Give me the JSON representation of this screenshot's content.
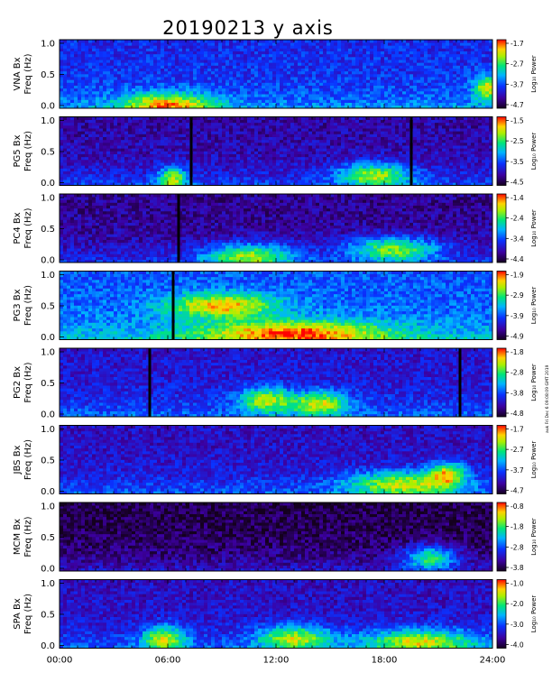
{
  "chart_data": {
    "type": "heatmap",
    "title": "20190213 y axis",
    "x_tick_labels": [
      "00:00",
      "06:00",
      "12:00",
      "18:00",
      "24:00"
    ],
    "x_range_hours": [
      0,
      24
    ],
    "y_tick_labels": [
      "0.0",
      "0.5",
      "1.0"
    ],
    "y_range_hz": [
      0,
      1.0
    ],
    "colorbar_label": "Log₁₀ Power",
    "credit": "auk Fri Dec 6 09:08:09 GMT 2019",
    "panels": [
      {
        "station": "VNA Bx",
        "freq_label": "Freq (Hz)",
        "cb_ticks": [
          "-1.7",
          "-2.7",
          "-3.7",
          "-4.7"
        ],
        "dark_gaps_hours": [],
        "hot_spots": [
          {
            "t": 6.0,
            "f": 0.05,
            "w": 2.5
          },
          {
            "t": 23.8,
            "f": 0.3,
            "w": 0.8
          }
        ]
      },
      {
        "station": "PG5 Bx",
        "freq_label": "Freq (Hz)",
        "cb_ticks": [
          "-1.5",
          "-2.5",
          "-3.5",
          "-4.5"
        ],
        "dark_gaps_hours": [
          7.3,
          19.5
        ],
        "hot_spots": [
          {
            "t": 6.3,
            "f": 0.1,
            "w": 0.8
          },
          {
            "t": 17.5,
            "f": 0.15,
            "w": 2.0
          }
        ]
      },
      {
        "station": "PC4 Bx",
        "freq_label": "Freq (Hz)",
        "cb_ticks": [
          "-1.4",
          "-2.4",
          "-3.4",
          "-4.4"
        ],
        "dark_gaps_hours": [
          6.6
        ],
        "hot_spots": [
          {
            "t": 10.5,
            "f": 0.1,
            "w": 2.5
          },
          {
            "t": 18.5,
            "f": 0.2,
            "w": 2.5
          }
        ]
      },
      {
        "station": "PG3 Bx",
        "freq_label": "Freq (Hz)",
        "cb_ticks": [
          "-1.9",
          "-2.9",
          "-3.9",
          "-4.9"
        ],
        "dark_gaps_hours": [
          6.3
        ],
        "hot_spots": [
          {
            "t": 13.0,
            "f": 0.1,
            "w": 5.0
          },
          {
            "t": 9.0,
            "f": 0.5,
            "w": 3.0
          }
        ]
      },
      {
        "station": "PG2 Bx",
        "freq_label": "Freq (Hz)",
        "cb_ticks": [
          "-1.8",
          "-2.8",
          "-3.8",
          "-4.8"
        ],
        "dark_gaps_hours": [
          5.0,
          22.2
        ],
        "hot_spots": [
          {
            "t": 11.5,
            "f": 0.25,
            "w": 1.5
          },
          {
            "t": 14.5,
            "f": 0.2,
            "w": 1.5
          }
        ]
      },
      {
        "station": "JBS Bx",
        "freq_label": "Freq (Hz)",
        "cb_ticks": [
          "-1.7",
          "-2.7",
          "-3.7",
          "-4.7"
        ],
        "dark_gaps_hours": [],
        "hot_spots": [
          {
            "t": 21.5,
            "f": 0.3,
            "w": 1.0
          },
          {
            "t": 19.0,
            "f": 0.15,
            "w": 3.0
          }
        ]
      },
      {
        "station": "MCM Bx",
        "freq_label": "Freq (Hz)",
        "cb_ticks": [
          "-0.8",
          "-1.8",
          "-2.8",
          "-3.8"
        ],
        "dark_gaps_hours": [],
        "hot_spots": [
          {
            "t": 20.5,
            "f": 0.2,
            "w": 1.5
          }
        ]
      },
      {
        "station": "SPA Bx",
        "freq_label": "Freq (Hz)",
        "cb_ticks": [
          "-1.0",
          "-2.0",
          "-3.0",
          "-4.0"
        ],
        "dark_gaps_hours": [],
        "hot_spots": [
          {
            "t": 5.8,
            "f": 0.15,
            "w": 1.2
          },
          {
            "t": 13.0,
            "f": 0.15,
            "w": 2.0
          },
          {
            "t": 20.0,
            "f": 0.1,
            "w": 3.0
          }
        ]
      }
    ]
  }
}
